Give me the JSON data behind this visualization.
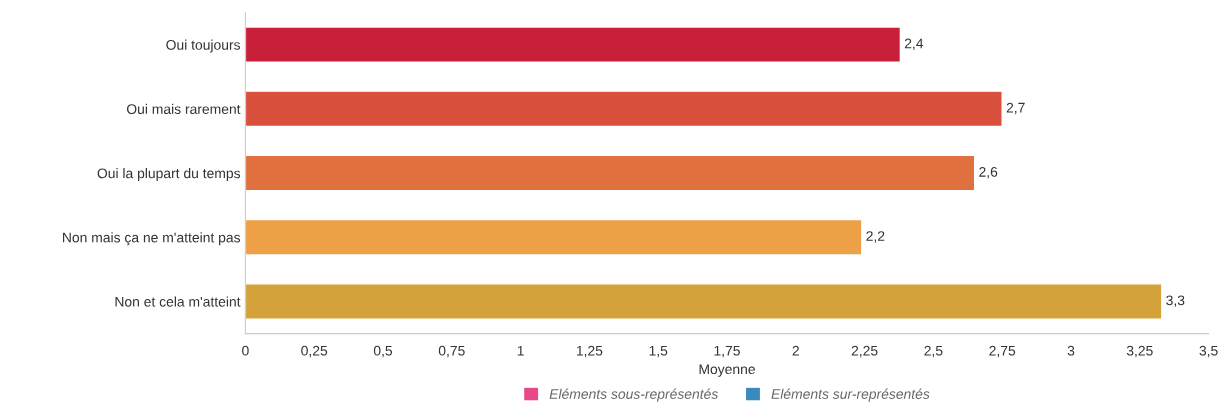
{
  "chart_data": {
    "type": "bar",
    "orientation": "horizontal",
    "xlabel": "Moyenne",
    "categories": [
      "Oui toujours",
      "Oui mais rarement",
      "Oui la plupart du temps",
      "Non mais ça ne m'atteint pas",
      "Non et cela m'atteint"
    ],
    "series": [
      {
        "values": [
          2.38,
          2.75,
          2.65,
          2.24,
          3.33
        ],
        "colors": [
          "#c8203a",
          "#d9503c",
          "#e0703e",
          "#eea046",
          "#d4a23a"
        ],
        "value_labels": [
          "2,4",
          "2,7",
          "2,6",
          "2,2",
          "3,3"
        ]
      },
      {
        "name": "Eléments sous-représentés",
        "color": "#e8488a",
        "values": [
          null,
          null,
          null,
          null,
          null
        ]
      },
      {
        "name": "Eléments sur-représentés",
        "color": "#3a8ac0",
        "values": [
          null,
          null,
          null,
          null,
          null
        ]
      }
    ],
    "xlim": [
      0,
      3.5
    ],
    "xticks": [
      0,
      {
        "value": 0.25,
        "label": "0,25"
      },
      {
        "value": 0.5,
        "label": "0,5"
      },
      {
        "value": 0.75,
        "label": "0,75"
      },
      1,
      {
        "value": 1.25,
        "label": "1,25"
      },
      {
        "value": 1.5,
        "label": "1,5"
      },
      {
        "value": 1.75,
        "label": "1,75"
      },
      2,
      {
        "value": 2.25,
        "label": "2,25"
      },
      {
        "value": 2.5,
        "label": "2,5"
      },
      {
        "value": 2.75,
        "label": "2,75"
      },
      3,
      {
        "value": 3.25,
        "label": "3,25"
      },
      {
        "value": 3.5,
        "label": "3,5"
      }
    ],
    "grid": false,
    "legend": "bottom"
  }
}
